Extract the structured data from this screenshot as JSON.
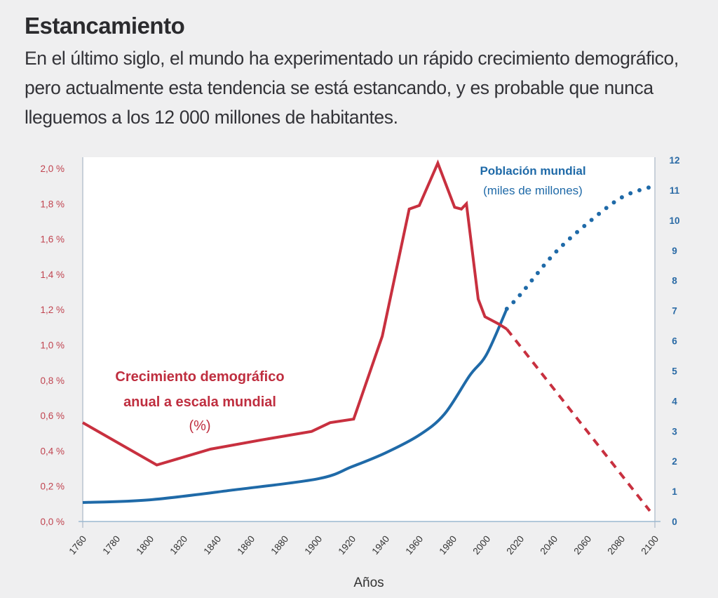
{
  "header": {
    "title": "Estancamiento",
    "subtitle": "En el último siglo, el mundo ha experimentado un rápido crecimiento demográfico, pero actualmente esta tendencia se está estancando, y es probable que nunca lleguemos a los 12 000 millones de habitantes."
  },
  "chart_data": {
    "type": "line",
    "title": "Estancamiento",
    "xlabel": "Años",
    "ylabel_left": "Crecimiento demográfico anual a escala mundial (%)",
    "ylabel_right": "Población mundial (miles de millones)",
    "xlim": [
      1760,
      2100
    ],
    "ylim_left": [
      0,
      2.0
    ],
    "ylim_right": [
      0,
      12
    ],
    "grid": false,
    "x_ticks": [
      "1760",
      "1780",
      "1800",
      "1820",
      "1840",
      "1860",
      "1880",
      "1900",
      "1920",
      "1940",
      "1960",
      "1980",
      "2000",
      "2020",
      "2040",
      "2060",
      "2080",
      "2100"
    ],
    "y_ticks_left": [
      "0,0 %",
      "0,2 %",
      "0,4 %",
      "0,6 %",
      "0,8 %",
      "1,0 %",
      "1,2 %",
      "1,4 %",
      "1,6 %",
      "1,8 %",
      "2,0 %"
    ],
    "y_ticks_right": [
      "0",
      "1",
      "2",
      "3",
      "4",
      "5",
      "6",
      "7",
      "8",
      "9",
      "10",
      "11",
      "12"
    ],
    "colors": {
      "growth": "#c8303f",
      "population": "#1f6aa8"
    },
    "annotations": {
      "growth_line1": "Crecimiento demográfico",
      "growth_line2": "anual a escala mundial",
      "growth_line3": "(%)",
      "population_line1": "Población mundial",
      "population_line2": "(miles de millones)"
    },
    "series": [
      {
        "name": "Crecimiento demográfico anual (%)",
        "axis": "left",
        "style": "solid",
        "x": [
          1760,
          1804,
          1836,
          1865,
          1896,
          1907,
          1921,
          1938,
          1954,
          1960,
          1971,
          1981,
          1985,
          1988,
          1995,
          1999,
          2007,
          2012
        ],
        "y": [
          0.56,
          0.32,
          0.41,
          0.46,
          0.51,
          0.56,
          0.58,
          1.05,
          1.77,
          1.79,
          2.03,
          1.78,
          1.77,
          1.8,
          1.26,
          1.16,
          1.12,
          1.09
        ]
      },
      {
        "name": "Crecimiento demográfico anual (%) — proyección",
        "axis": "left",
        "style": "dashed",
        "x": [
          2012,
          2097
        ],
        "y": [
          1.09,
          0.06
        ]
      },
      {
        "name": "Población mundial (miles de millones)",
        "axis": "right",
        "style": "solid",
        "x": [
          1760,
          1800,
          1850,
          1900,
          1920,
          1940,
          1960,
          1975,
          1990,
          2000,
          2012
        ],
        "y": [
          0.63,
          0.72,
          1.05,
          1.42,
          1.82,
          2.28,
          2.87,
          3.57,
          4.85,
          5.55,
          7.06
        ]
      },
      {
        "name": "Población mundial (miles de millones) — proyección",
        "axis": "right",
        "style": "dotted",
        "x": [
          2012,
          2020,
          2040,
          2060,
          2080,
          2097
        ],
        "y": [
          7.06,
          7.53,
          8.88,
          9.9,
          10.75,
          11.1
        ]
      }
    ]
  }
}
